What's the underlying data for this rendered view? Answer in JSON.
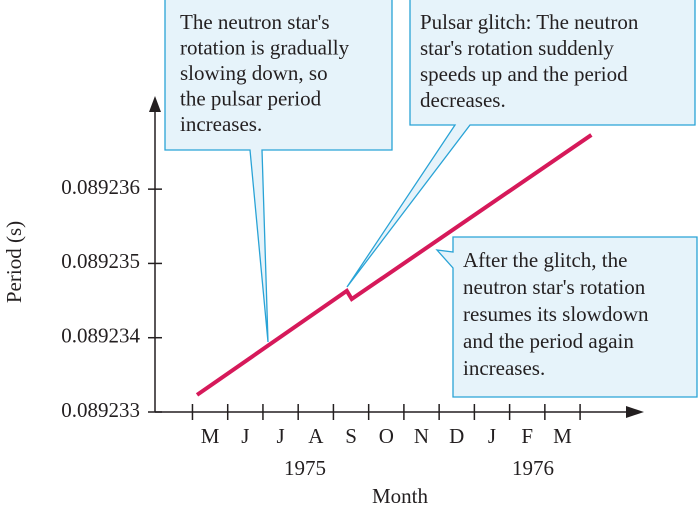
{
  "chart_data": {
    "type": "line",
    "y_label": "Period (s)",
    "x_label": "Month",
    "categories": [
      "M",
      "J",
      "J",
      "A",
      "S",
      "O",
      "N",
      "D",
      "J",
      "F",
      "M"
    ],
    "years": [
      "1975",
      "1976"
    ],
    "series": [
      {
        "name": "Period",
        "color": "#d6195a",
        "x": [
          -0.37,
          3.88,
          4.02,
          10.82
        ],
        "values": [
          0.08923323,
          0.08923463,
          0.08923452,
          0.08923673
        ]
      }
    ],
    "xlim": [
      -0.57,
      12.2
    ],
    "ylim": [
      0.089233,
      0.0892372
    ],
    "yticks": [
      0.089233,
      0.089234,
      0.089235,
      0.089236
    ],
    "annotations": [
      {
        "lines": [
          "The neutron star's",
          "rotation is gradually",
          "slowing down, so",
          "the pulsar period",
          "increases."
        ]
      },
      {
        "lines": [
          "Pulsar glitch: The neutron",
          "star's rotation suddenly",
          "speeds up and the period",
          "decreases."
        ]
      },
      {
        "lines": [
          "After the glitch, the",
          "neutron star's rotation",
          "resumes its slowdown",
          "and the period again",
          "increases."
        ]
      }
    ]
  }
}
